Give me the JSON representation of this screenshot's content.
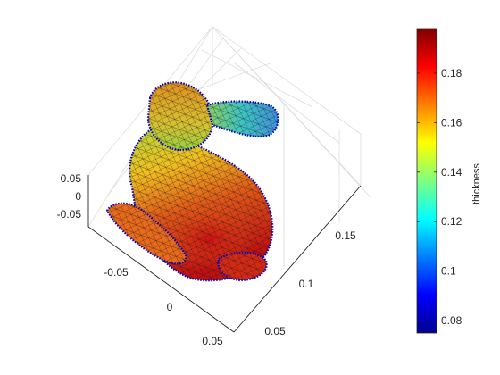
{
  "chart_data": {
    "type": "surface",
    "title": "",
    "shading": "interp",
    "edges": "black mesh",
    "boundary_marker_color": "#0000ff",
    "z_ticks": [
      "0.05",
      "0",
      "-0.05"
    ],
    "x_ticks": [
      "-0.05",
      "0",
      "0.05"
    ],
    "y_ticks": [
      "0.05",
      "0.1",
      "0.15"
    ],
    "colormap": "jet",
    "colorbar": {
      "label": "thickness",
      "range": [
        0.075,
        0.198
      ],
      "ticks": [
        "0.18",
        "0.16",
        "0.14",
        "0.12",
        "0.1",
        "0.08"
      ],
      "tick_values": [
        0.18,
        0.16,
        0.14,
        0.12,
        0.1,
        0.08
      ],
      "location": "east"
    }
  }
}
